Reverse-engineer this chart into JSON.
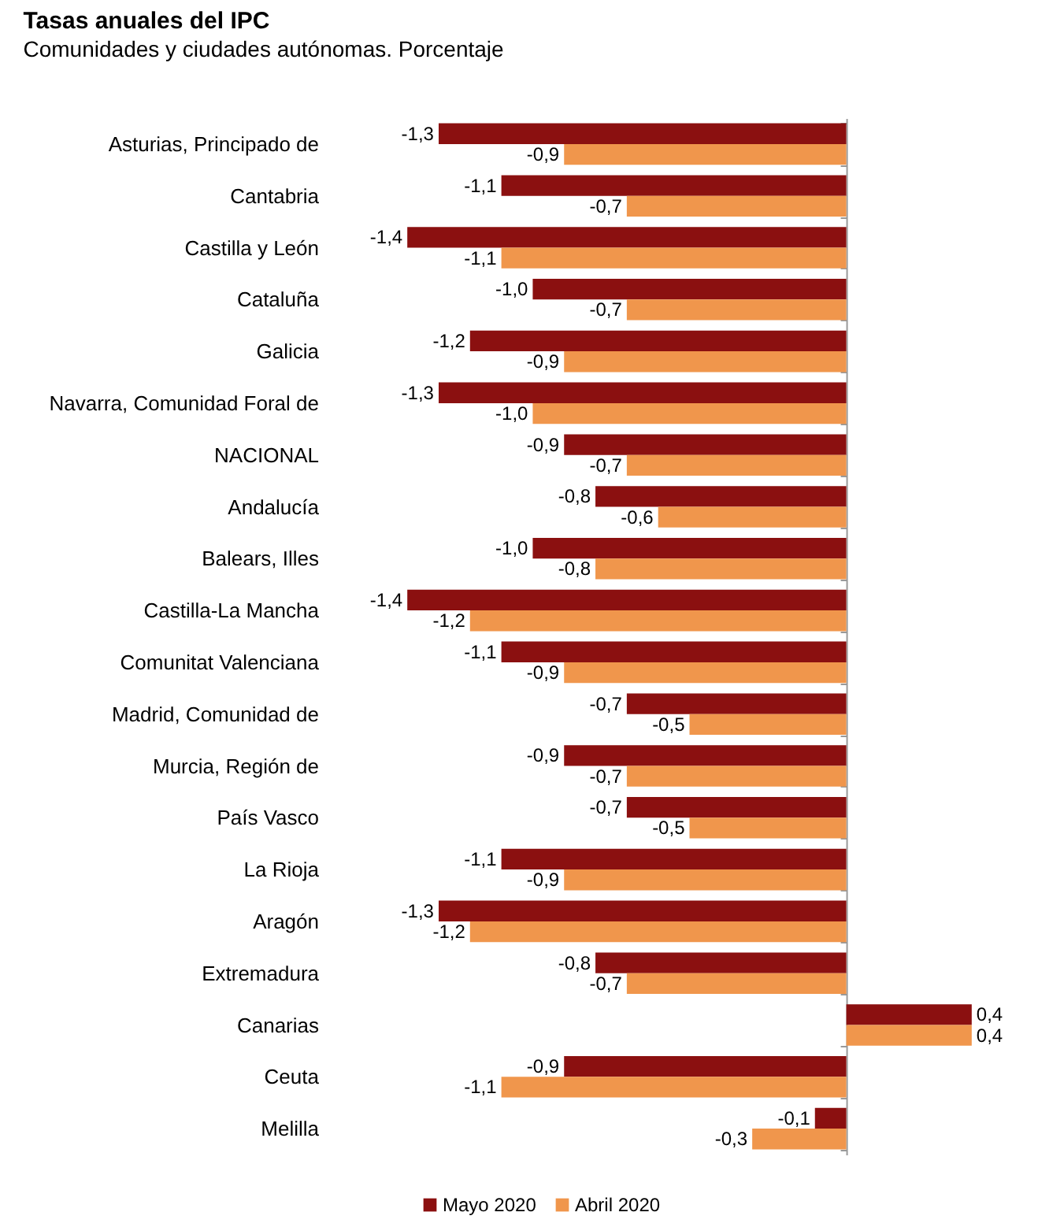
{
  "chart_data": {
    "type": "bar",
    "orientation": "horizontal",
    "title": "Tasas anuales del IPC",
    "subtitle": "Comunidades y ciudades autónomas. Porcentaje",
    "categories": [
      "Asturias, Principado de",
      "Cantabria",
      "Castilla y León",
      "Cataluña",
      "Galicia",
      "Navarra, Comunidad Foral de",
      "NACIONAL",
      "Andalucía",
      "Balears, Illes",
      "Castilla-La Mancha",
      "Comunitat Valenciana",
      "Madrid, Comunidad de",
      "Murcia, Región de",
      "País Vasco",
      "La Rioja",
      "Aragón",
      "Extremadura",
      "Canarias",
      "Ceuta",
      "Melilla"
    ],
    "series": [
      {
        "name": "Mayo 2020",
        "color": "#8b1010",
        "values": [
          -1.3,
          -1.1,
          -1.4,
          -1.0,
          -1.2,
          -1.3,
          -0.9,
          -0.8,
          -1.0,
          -1.4,
          -1.1,
          -0.7,
          -0.9,
          -0.7,
          -1.1,
          -1.3,
          -0.8,
          0.4,
          -0.9,
          -0.1
        ],
        "value_labels": [
          "-1,3",
          "-1,1",
          "-1,4",
          "-1,0",
          "-1,2",
          "-1,3",
          "-0,9",
          "-0,8",
          "-1,0",
          "-1,4",
          "-1,1",
          "-0,7",
          "-0,9",
          "-0,7",
          "-1,1",
          "-1,3",
          "-0,8",
          "0,4",
          "-0,9",
          "-0,1"
        ]
      },
      {
        "name": "Abril 2020",
        "color": "#f0964c",
        "values": [
          -0.9,
          -0.7,
          -1.1,
          -0.7,
          -0.9,
          -1.0,
          -0.7,
          -0.6,
          -0.8,
          -1.2,
          -0.9,
          -0.5,
          -0.7,
          -0.5,
          -0.9,
          -1.2,
          -0.7,
          0.4,
          -1.1,
          -0.3
        ],
        "value_labels": [
          "-0,9",
          "-0,7",
          "-1,1",
          "-0,7",
          "-0,9",
          "-1,0",
          "-0,7",
          "-0,6",
          "-0,8",
          "-1,2",
          "-0,9",
          "-0,5",
          "-0,7",
          "-0,5",
          "-0,9",
          "-1,2",
          "-0,7",
          "0,4",
          "-1,1",
          "-0,3"
        ]
      }
    ],
    "legend": "bottom",
    "tick_labels": "y"
  }
}
